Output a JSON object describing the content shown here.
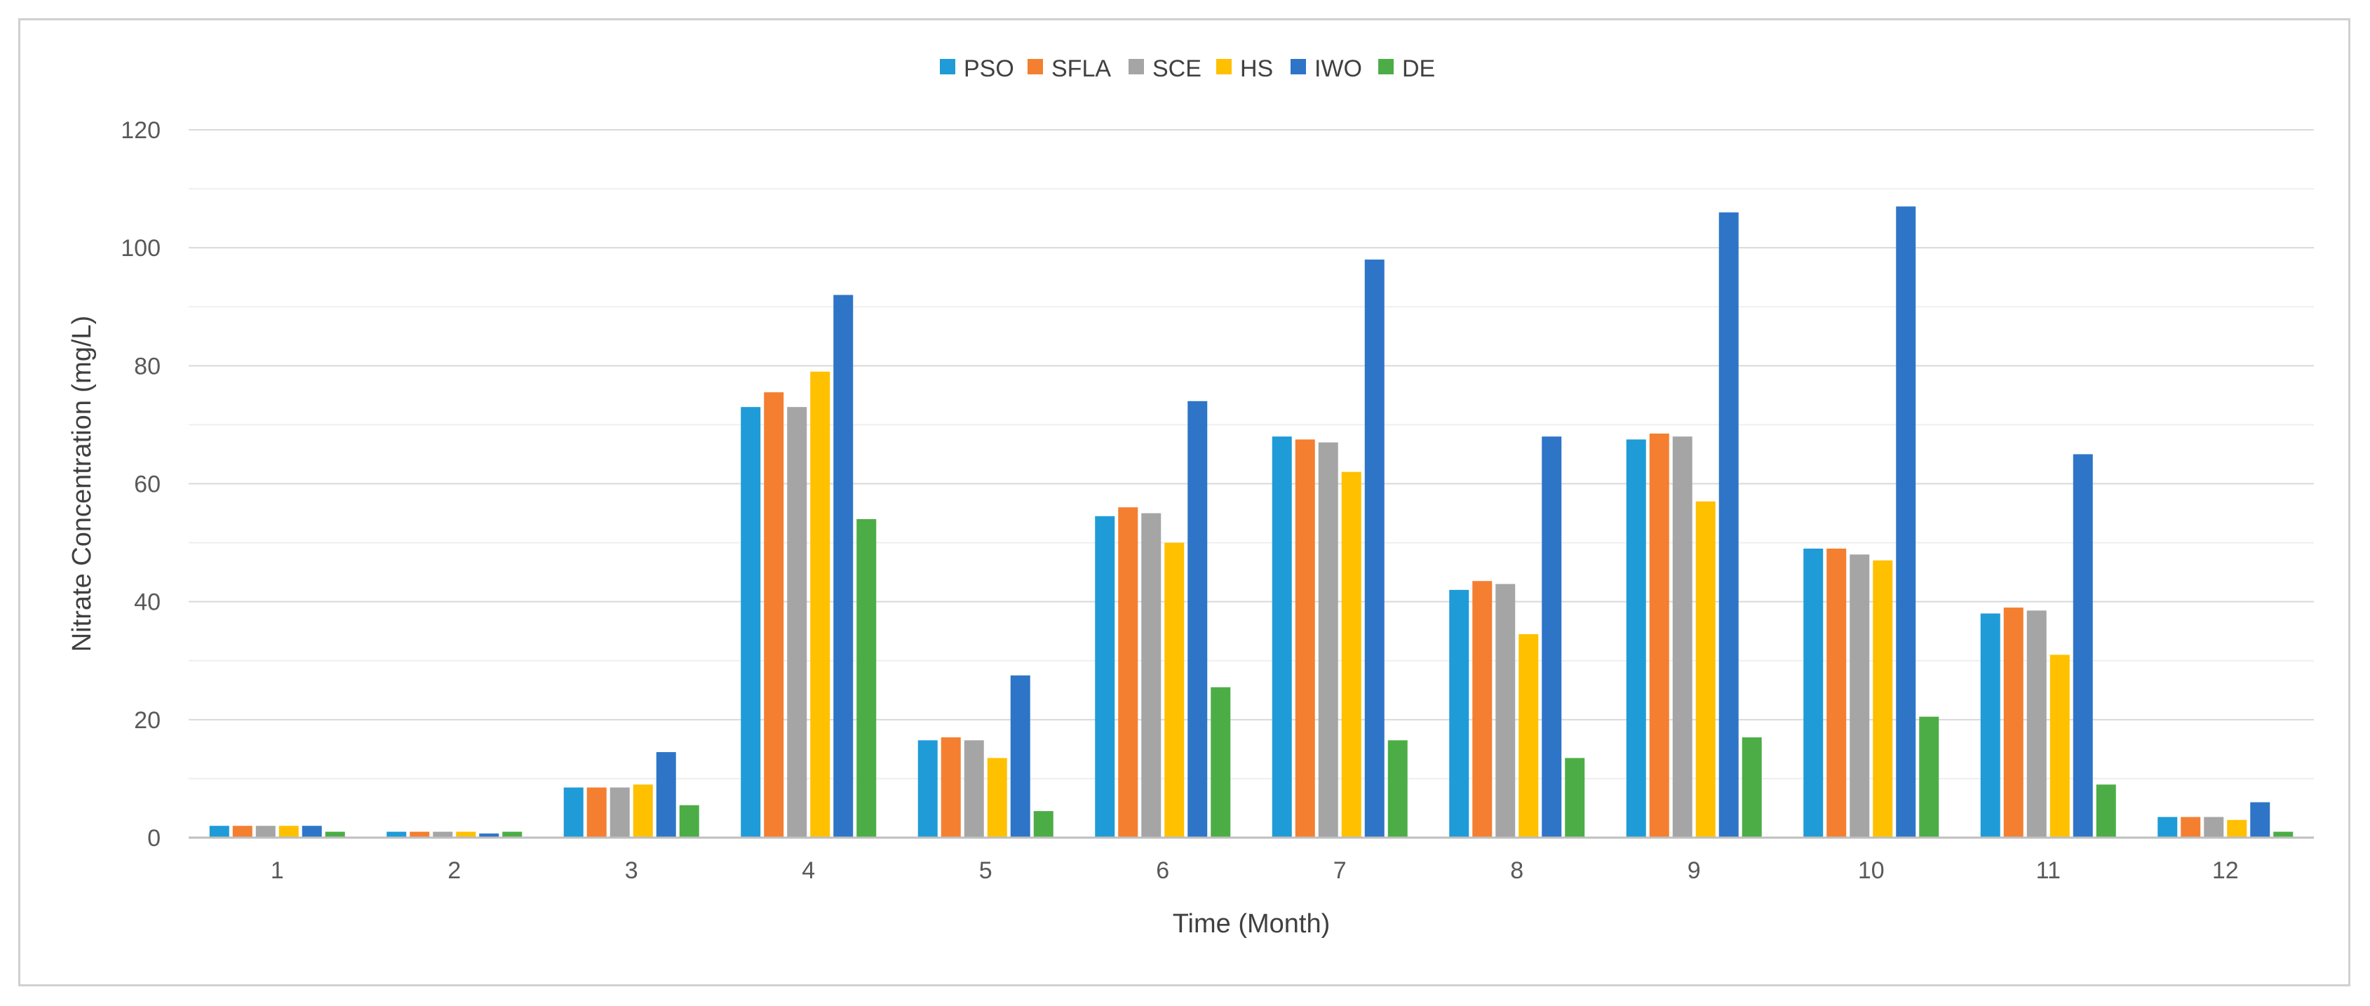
{
  "chart_data": {
    "type": "bar",
    "title": "",
    "xlabel": "Time (Month)",
    "ylabel": "Nitrate Concentration (mg/L)",
    "ylim": [
      0,
      120
    ],
    "y_ticks": [
      0,
      20,
      40,
      60,
      80,
      100,
      120
    ],
    "grid": true,
    "legend_position": "top-center",
    "categories": [
      "1",
      "2",
      "3",
      "4",
      "5",
      "6",
      "7",
      "8",
      "9",
      "10",
      "11",
      "12"
    ],
    "series": [
      {
        "name": "PSO",
        "color": "#1f9bd7",
        "values": [
          2,
          1,
          8.5,
          73,
          16.5,
          54.5,
          68,
          42,
          67.5,
          49,
          38,
          3.5
        ]
      },
      {
        "name": "SFLA",
        "color": "#f47f30",
        "values": [
          2,
          1,
          8.5,
          75.5,
          17,
          56,
          67.5,
          43.5,
          68.5,
          49,
          39,
          3.5
        ]
      },
      {
        "name": "SCE",
        "color": "#a5a5a5",
        "values": [
          2,
          1,
          8.5,
          73,
          16.5,
          55,
          67,
          43,
          68,
          48,
          38.5,
          3.5
        ]
      },
      {
        "name": "HS",
        "color": "#ffc000",
        "values": [
          2,
          1,
          9,
          79,
          13.5,
          50,
          62,
          34.5,
          57,
          47,
          31,
          3
        ]
      },
      {
        "name": "IWO",
        "color": "#2e75c8",
        "values": [
          2,
          0.7,
          14.5,
          92,
          27.5,
          74,
          98,
          68,
          106,
          107,
          65,
          6
        ]
      },
      {
        "name": "DE",
        "color": "#4cad47",
        "values": [
          1,
          1,
          5.5,
          54,
          4.5,
          25.5,
          16.5,
          13.5,
          17,
          20.5,
          9,
          1
        ]
      }
    ]
  }
}
